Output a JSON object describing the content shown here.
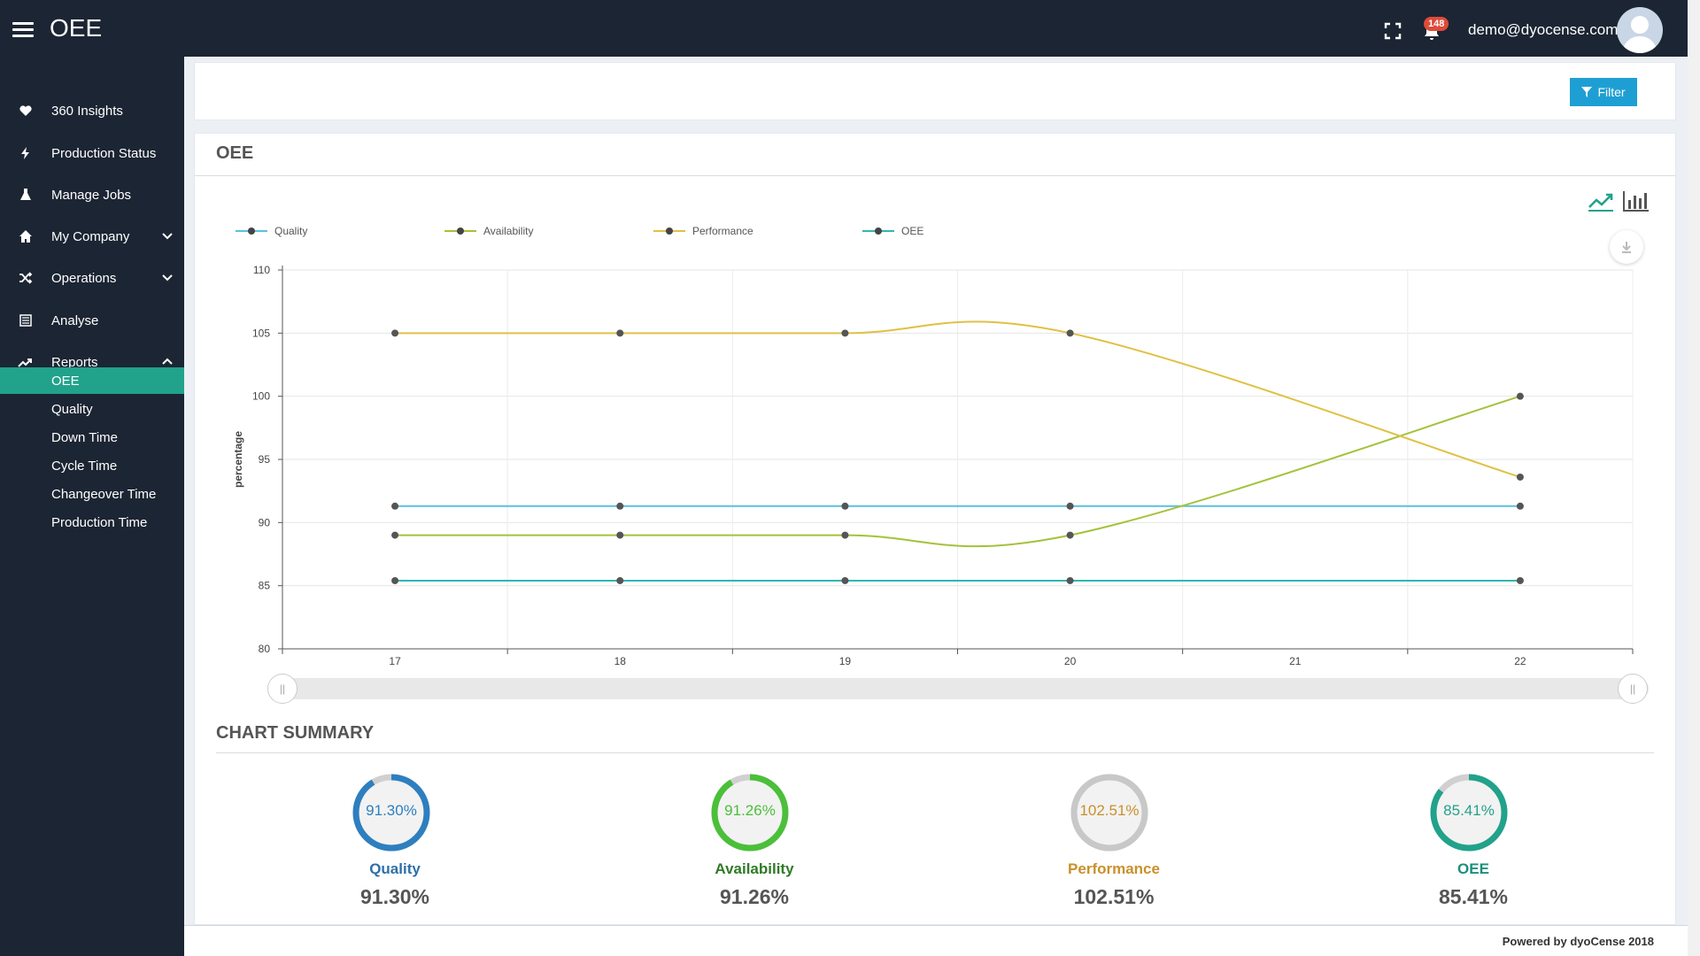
{
  "header": {
    "title": "OEE",
    "notification_count": "148",
    "user_email": "demo@dyocense.com"
  },
  "sidebar": {
    "items": [
      {
        "label": "360 Insights",
        "icon": "heart-icon"
      },
      {
        "label": "Production Status",
        "icon": "bolt-icon"
      },
      {
        "label": "Manage Jobs",
        "icon": "flask-icon"
      },
      {
        "label": "My Company",
        "icon": "home-icon"
      },
      {
        "label": "Operations",
        "icon": "shuffle-icon"
      },
      {
        "label": "Analyse",
        "icon": "list-icon"
      },
      {
        "label": "Reports",
        "icon": "trend-icon"
      }
    ],
    "report_items": [
      "OEE",
      "Quality",
      "Down Time",
      "Cycle Time",
      "Changeover Time",
      "Production Time"
    ],
    "active": "OEE"
  },
  "filter": {
    "label": "Filter"
  },
  "panel": {
    "title": "OEE"
  },
  "colors": {
    "quality": "#5bc0de",
    "availability": "#a4c23a",
    "performance": "#e0c043",
    "oee": "#2fb7b0",
    "accent": "#21a28b",
    "nav_bg": "#1c2533"
  },
  "chart_data": {
    "type": "line",
    "x": [
      17,
      18,
      19,
      20,
      22
    ],
    "x_ticks": [
      "17",
      "18",
      "19",
      "20",
      "21",
      "22"
    ],
    "ylabel": "percentage",
    "ylim": [
      80,
      110
    ],
    "y_ticks": [
      "80",
      "85",
      "90",
      "95",
      "100",
      "105",
      "110"
    ],
    "grid": true,
    "legend_position": "top",
    "series": [
      {
        "name": "Quality",
        "values": [
          91.3,
          91.3,
          91.3,
          91.3,
          91.3
        ]
      },
      {
        "name": "Availability",
        "values": [
          89.0,
          89.0,
          89.0,
          89.0,
          100.0
        ]
      },
      {
        "name": "Performance",
        "values": [
          105.0,
          105.0,
          105.0,
          105.0,
          93.6
        ]
      },
      {
        "name": "OEE",
        "values": [
          85.4,
          85.4,
          85.4,
          85.4,
          85.4
        ]
      }
    ]
  },
  "summary": {
    "title": "CHART SUMMARY",
    "items": [
      {
        "label": "Quality",
        "value": "91.30%",
        "fraction": 0.913,
        "color": "#2e7fbf",
        "label_color": "#2e6fa8"
      },
      {
        "label": "Availability",
        "value": "91.26%",
        "fraction": 0.9126,
        "color": "#4bbf3a",
        "label_color": "#2f7a27"
      },
      {
        "label": "Performance",
        "value": "102.51%",
        "fraction": 1.0,
        "color": "#c8c8c8",
        "label_color": "#c9902a"
      },
      {
        "label": "OEE",
        "value": "85.41%",
        "fraction": 0.8541,
        "color": "#21a28b",
        "label_color": "#1c8f7d"
      }
    ]
  },
  "footer": {
    "text": "Powered by dyoCense 2018"
  }
}
